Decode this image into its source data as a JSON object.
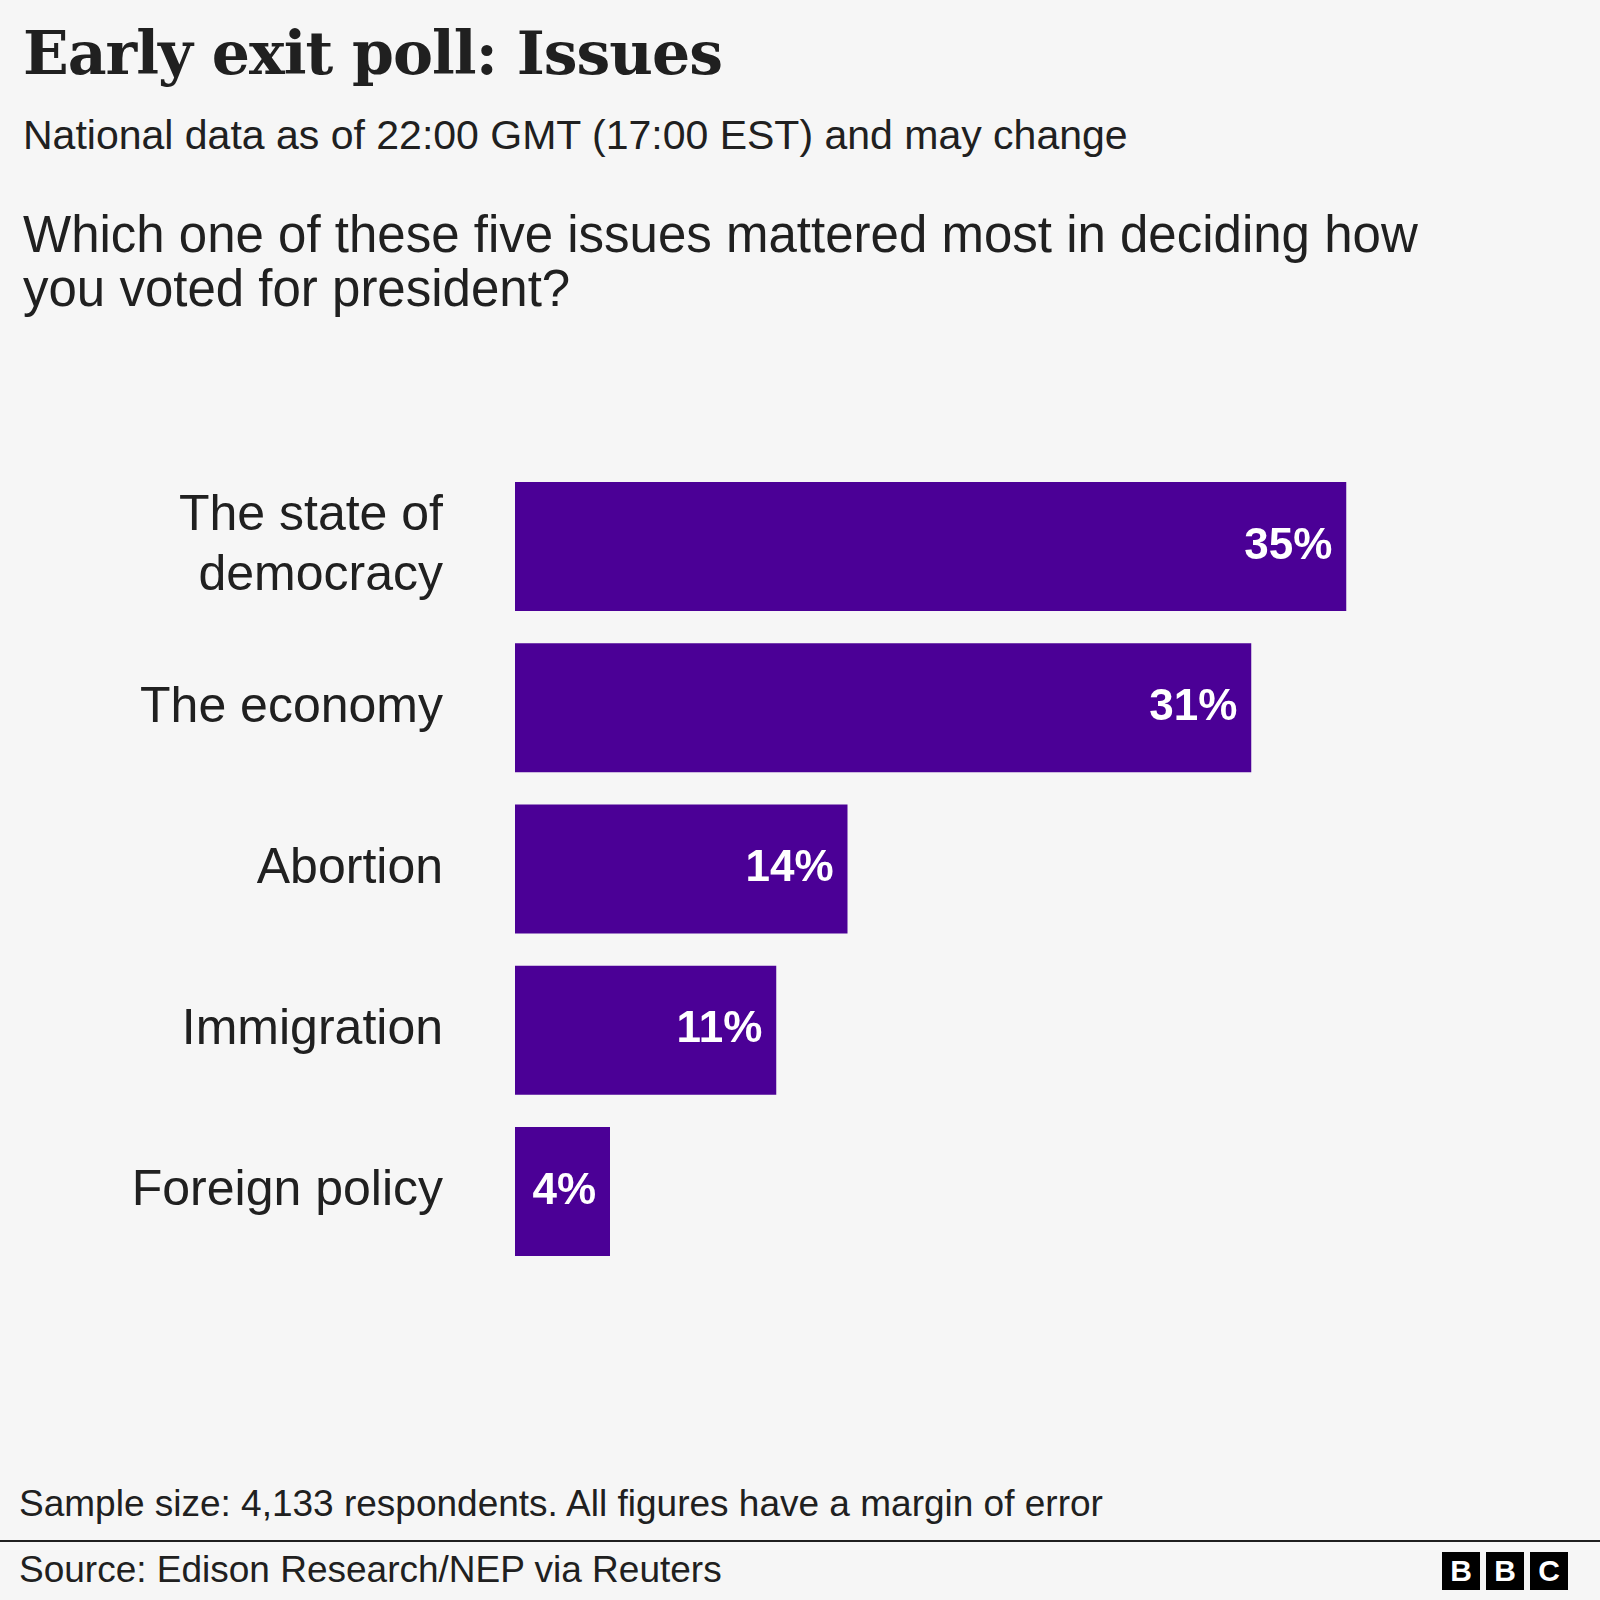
{
  "chart_data": {
    "type": "bar",
    "orientation": "horizontal",
    "title": "Early exit poll: Issues",
    "subtitle": "National data as of 22:00 GMT (17:00 EST) and may change",
    "question": "Which one of these five issues mattered most in deciding how you voted for president?",
    "categories": [
      "The state of democracy",
      "The economy",
      "Abortion",
      "Immigration",
      "Foreign policy"
    ],
    "values": [
      35,
      31,
      14,
      11,
      4
    ],
    "value_labels": [
      "35%",
      "31%",
      "14%",
      "11%",
      "4%"
    ],
    "color": "#4b0096",
    "xlim": [
      0,
      44
    ],
    "grid": false,
    "legend": false,
    "data_labels": true,
    "tick_labels": "y",
    "note": "Sample size: 4,133 respondents. All figures have a margin of error",
    "source": "Source: Edison Research/NEP via Reuters",
    "logo": "BBC"
  }
}
